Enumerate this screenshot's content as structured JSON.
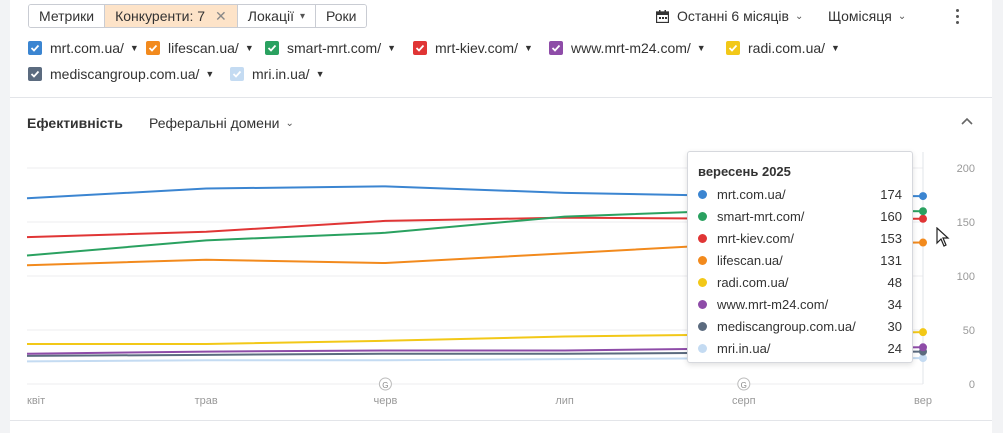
{
  "toolbar": {
    "tabs": [
      {
        "label": "Метрики"
      },
      {
        "label": "Конкуренти: 7"
      },
      {
        "label": "Локації"
      },
      {
        "label": "Роки"
      }
    ],
    "period_label": "Останні 6 місяців",
    "granularity_label": "Щомісяця"
  },
  "domains": [
    {
      "label": "mrt.com.ua/",
      "color": "#3b85d1"
    },
    {
      "label": "lifescan.ua/",
      "color": "#f28a1d"
    },
    {
      "label": "smart-mrt.com/",
      "color": "#2aa160"
    },
    {
      "label": "mrt-kiev.com/",
      "color": "#e03535"
    },
    {
      "label": "www.mrt-m24.com/",
      "color": "#8e4ca8"
    },
    {
      "label": "radi.com.ua/",
      "color": "#f2c818"
    },
    {
      "label": "mediscangroup.com.ua/",
      "color": "#5b6b7f"
    },
    {
      "label": "mri.in.ua/",
      "color": "#c4dbf2"
    }
  ],
  "section": {
    "title": "Ефективність",
    "metric_dropdown": "Реферальні домени"
  },
  "chart_data": {
    "type": "line",
    "categories": [
      "квіт",
      "трав",
      "черв",
      "лип",
      "серп",
      "вер"
    ],
    "ylim": [
      0,
      200
    ],
    "yticks": [
      "200",
      "150",
      "100",
      "50",
      "0"
    ],
    "grid": true,
    "markers": [
      {
        "at": "черв",
        "label": "G"
      },
      {
        "at": "серп",
        "label": "G"
      }
    ],
    "series": [
      {
        "name": "mrt.com.ua/",
        "color": "#3b85d1",
        "values": [
          172,
          181,
          183,
          177,
          174,
          174
        ]
      },
      {
        "name": "lifescan.ua/",
        "color": "#f28a1d",
        "values": [
          110,
          115,
          112,
          121,
          130,
          131
        ]
      },
      {
        "name": "smart-mrt.com/",
        "color": "#2aa160",
        "values": [
          119,
          133,
          140,
          155,
          161,
          160
        ]
      },
      {
        "name": "mrt-kiev.com/",
        "color": "#e03535",
        "values": [
          136,
          141,
          151,
          154,
          153,
          153
        ]
      },
      {
        "name": "www.mrt-m24.com/",
        "color": "#8e4ca8",
        "values": [
          28,
          30,
          31,
          31,
          33,
          34
        ]
      },
      {
        "name": "radi.com.ua/",
        "color": "#f2c818",
        "values": [
          37,
          37,
          40,
          44,
          46,
          48
        ]
      },
      {
        "name": "mediscangroup.com.ua/",
        "color": "#5b6b7f",
        "values": [
          26,
          27,
          28,
          28,
          29,
          30
        ]
      },
      {
        "name": "mri.in.ua/",
        "color": "#c4dbf2",
        "values": [
          21,
          22,
          22,
          23,
          24,
          24
        ]
      }
    ]
  },
  "tooltip": {
    "title": "вересень 2025",
    "rows": [
      {
        "name": "mrt.com.ua/",
        "value": "174",
        "color": "#3b85d1"
      },
      {
        "name": "smart-mrt.com/",
        "value": "160",
        "color": "#2aa160"
      },
      {
        "name": "mrt-kiev.com/",
        "value": "153",
        "color": "#e03535"
      },
      {
        "name": "lifescan.ua/",
        "value": "131",
        "color": "#f28a1d"
      },
      {
        "name": "radi.com.ua/",
        "value": "48",
        "color": "#f2c818"
      },
      {
        "name": "www.mrt-m24.com/",
        "value": "34",
        "color": "#8e4ca8"
      },
      {
        "name": "mediscangroup.com.ua/",
        "value": "30",
        "color": "#5b6b7f"
      },
      {
        "name": "mri.in.ua/",
        "value": "24",
        "color": "#c4dbf2"
      }
    ]
  }
}
